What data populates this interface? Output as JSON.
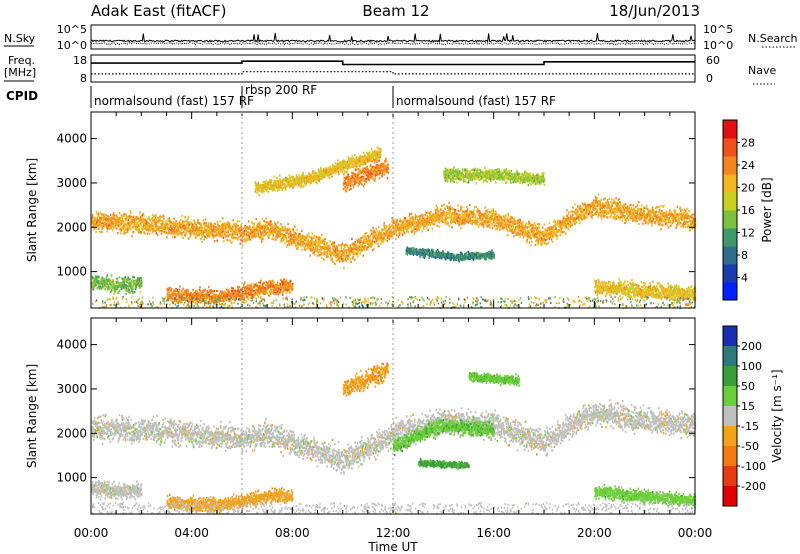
{
  "header": {
    "station": "Adak East (fitACF)",
    "beam": "Beam 12",
    "date": "18/Jun/2013"
  },
  "panels": {
    "nsky": {
      "left_label": "N.Sky",
      "right_label": "N.Search",
      "ticks": [
        "10^5",
        "10^0"
      ]
    },
    "freq": {
      "left_label_line1": "Freq.",
      "left_label_line2": "[MHz]",
      "left_ticks": [
        "18",
        "8"
      ],
      "right_label": "Nave",
      "right_ticks": [
        "60",
        "0"
      ]
    },
    "cpid": {
      "label": "CPID",
      "segments": [
        {
          "label": "normalsound (fast) 157 RF",
          "start_h": 0,
          "end_h": 6
        },
        {
          "label": "rbsp 200 RF",
          "start_h": 6,
          "end_h": 12
        },
        {
          "label": "normalsound (fast) 157 RF",
          "start_h": 12,
          "end_h": 24
        }
      ]
    }
  },
  "chart_data": [
    {
      "type": "line",
      "title": "N.Sky / N.Search",
      "x_range_hours": [
        0,
        24
      ],
      "y_scale": "log",
      "ylim": [
        1,
        100000
      ],
      "series": [
        {
          "name": "N.Sky",
          "style": "solid"
        },
        {
          "name": "N.Search",
          "style": "dotted"
        }
      ]
    },
    {
      "type": "line",
      "title": "Freq. / Nave",
      "x_range_hours": [
        0,
        24
      ],
      "series": [
        {
          "name": "Freq. [MHz]",
          "style": "solid",
          "ylim": [
            8,
            18
          ],
          "steps": [
            {
              "start_h": 0,
              "end_h": 6,
              "value": 15
            },
            {
              "start_h": 6,
              "end_h": 10,
              "value": 15.7
            },
            {
              "start_h": 10,
              "end_h": 12,
              "value": 14.5
            },
            {
              "start_h": 12,
              "end_h": 18,
              "value": 14.5
            },
            {
              "start_h": 18,
              "end_h": 24,
              "value": 15.5
            }
          ]
        },
        {
          "name": "Nave",
          "style": "dotted",
          "ylim": [
            0,
            60
          ],
          "steps": [
            {
              "start_h": 0,
              "end_h": 6,
              "value": 18
            },
            {
              "start_h": 6,
              "end_h": 12,
              "value": 23
            },
            {
              "start_h": 12,
              "end_h": 24,
              "value": 18
            }
          ]
        }
      ]
    },
    {
      "type": "heatmap",
      "name": "power",
      "x_range_hours": [
        0,
        24
      ],
      "xticks": [
        "00:00",
        "04:00",
        "08:00",
        "12:00",
        "16:00",
        "20:00",
        "00:00"
      ],
      "ylabel": "Slant Range [km]",
      "ylim": [
        180,
        4600
      ],
      "yticks": [
        1000,
        2000,
        3000,
        4000
      ],
      "colorbar": {
        "label": "Power [dB]",
        "ticks": [
          "4",
          "8",
          "12",
          "16",
          "20",
          "24",
          "28"
        ],
        "colors": [
          "#0022ff",
          "#1a3bb0",
          "#2f6e8c",
          "#3f9a6a",
          "#7cc23c",
          "#c8d020",
          "#f3b722",
          "#f5851f",
          "#f0501a",
          "#e01010"
        ]
      },
      "bands": [
        {
          "points": [
            [
              0,
              2150
            ],
            [
              2,
              2100
            ],
            [
              4,
              2000
            ],
            [
              6,
              1900
            ],
            [
              7,
              2000
            ],
            [
              8,
              1800
            ],
            [
              9,
              1600
            ],
            [
              10,
              1400
            ],
            [
              11,
              1700
            ],
            [
              12,
              2000
            ],
            [
              14,
              2300
            ],
            [
              16,
              2200
            ],
            [
              18,
              1800
            ],
            [
              19,
              2200
            ],
            [
              20,
              2500
            ],
            [
              22,
              2300
            ],
            [
              24,
              2200
            ]
          ],
          "width_km": 320,
          "power": 22
        },
        {
          "points": [
            [
              0,
              800
            ],
            [
              1,
              700
            ],
            [
              2,
              750
            ]
          ],
          "width_km": 250,
          "power": 14
        },
        {
          "points": [
            [
              3,
              500
            ],
            [
              5,
              450
            ],
            [
              6,
              550
            ],
            [
              7,
              650
            ],
            [
              8,
              700
            ]
          ],
          "width_km": 250,
          "power": 24
        },
        {
          "points": [
            [
              6.5,
              2900
            ],
            [
              7.5,
              3000
            ],
            [
              8.5,
              3100
            ],
            [
              9.5,
              3300
            ],
            [
              10.5,
              3500
            ],
            [
              11.5,
              3700
            ]
          ],
          "width_km": 200,
          "power": 20
        },
        {
          "points": [
            [
              10,
              3000
            ],
            [
              11,
              3250
            ],
            [
              11.8,
              3400
            ]
          ],
          "width_km": 300,
          "power": 24
        },
        {
          "points": [
            [
              14,
              3200
            ],
            [
              16,
              3200
            ],
            [
              18,
              3100
            ]
          ],
          "width_km": 200,
          "power": 16
        },
        {
          "points": [
            [
              20,
              700
            ],
            [
              21.5,
              600
            ],
            [
              23,
              550
            ],
            [
              24,
              500
            ]
          ],
          "width_km": 260,
          "power": 20
        },
        {
          "points": [
            [
              12.5,
              1500
            ],
            [
              14.5,
              1350
            ],
            [
              16,
              1400
            ]
          ],
          "width_km": 120,
          "power": 10
        }
      ]
    },
    {
      "type": "heatmap",
      "name": "velocity",
      "x_range_hours": [
        0,
        24
      ],
      "xticks": [
        "00:00",
        "04:00",
        "08:00",
        "12:00",
        "16:00",
        "20:00",
        "00:00"
      ],
      "xlabel": "Time UT",
      "ylabel": "Slant Range [km]",
      "ylim": [
        180,
        4600
      ],
      "yticks": [
        1000,
        2000,
        3000,
        4000
      ],
      "colorbar": {
        "label": "Velocity [m s⁻¹]",
        "ticks": [
          "200",
          "100",
          "50",
          "15",
          "-15",
          "-50",
          "-100",
          "-200"
        ],
        "colors": [
          "#1a2fb0",
          "#2c7a7a",
          "#3a9f3a",
          "#6ccf3a",
          "#c0c0c0",
          "#f3a31a",
          "#f37a12",
          "#e83a10",
          "#e00000"
        ]
      },
      "bands": [
        {
          "points": [
            [
              0,
              2150
            ],
            [
              2,
              2100
            ],
            [
              4,
              2000
            ],
            [
              6,
              1900
            ],
            [
              7,
              2000
            ],
            [
              8,
              1800
            ],
            [
              9,
              1600
            ],
            [
              10,
              1400
            ],
            [
              11,
              1700
            ],
            [
              12,
              2000
            ],
            [
              14,
              2300
            ],
            [
              16,
              2200
            ],
            [
              18,
              1800
            ],
            [
              19,
              2200
            ],
            [
              20,
              2500
            ],
            [
              22,
              2300
            ],
            [
              24,
              2200
            ]
          ],
          "width_km": 400,
          "velocity": 0
        },
        {
          "points": [
            [
              0,
              800
            ],
            [
              1,
              700
            ],
            [
              2,
              750
            ]
          ],
          "width_km": 250,
          "velocity": 0
        },
        {
          "points": [
            [
              3,
              450
            ],
            [
              5,
              400
            ],
            [
              6,
              500
            ],
            [
              7,
              600
            ],
            [
              8,
              650
            ]
          ],
          "width_km": 220,
          "velocity": -30
        },
        {
          "points": [
            [
              10,
              3000
            ],
            [
              11,
              3250
            ],
            [
              11.8,
              3450
            ]
          ],
          "width_km": 300,
          "velocity": -40
        },
        {
          "points": [
            [
              12,
              1700
            ],
            [
              13,
              2000
            ],
            [
              14,
              2200
            ],
            [
              16,
              2100
            ]
          ],
          "width_km": 250,
          "velocity": 40
        },
        {
          "points": [
            [
              15,
              3300
            ],
            [
              17,
              3200
            ]
          ],
          "width_km": 150,
          "velocity": 40
        },
        {
          "points": [
            [
              13,
              1350
            ],
            [
              15,
              1300
            ]
          ],
          "width_km": 100,
          "velocity": 60
        },
        {
          "points": [
            [
              20,
              700
            ],
            [
              22,
              600
            ],
            [
              24,
              500
            ]
          ],
          "width_km": 200,
          "velocity": 30
        }
      ]
    }
  ]
}
